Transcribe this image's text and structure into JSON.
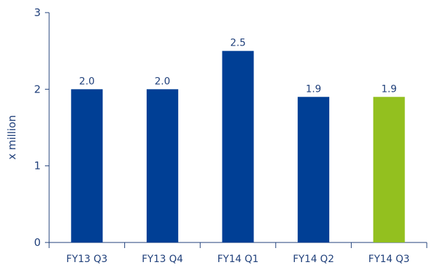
{
  "chart_data": {
    "type": "bar",
    "categories": [
      "FY13 Q3",
      "FY13 Q4",
      "FY14 Q1",
      "FY14 Q2",
      "FY14 Q3"
    ],
    "values": [
      2.0,
      2.0,
      2.5,
      1.9,
      1.9
    ],
    "value_labels": [
      "2.0",
      "2.0",
      "2.5",
      "1.9",
      "1.9"
    ],
    "bar_colors": [
      "#003f95",
      "#003f95",
      "#003f95",
      "#003f95",
      "#93c01f"
    ],
    "title": "",
    "xlabel": "",
    "ylabel": "x million",
    "ylim": [
      0,
      3
    ],
    "yticks": [
      0,
      1,
      2,
      3
    ],
    "ytick_labels": [
      "0",
      "1",
      "2",
      "3"
    ],
    "grid": false,
    "axis_color": "#1f3f7a"
  }
}
